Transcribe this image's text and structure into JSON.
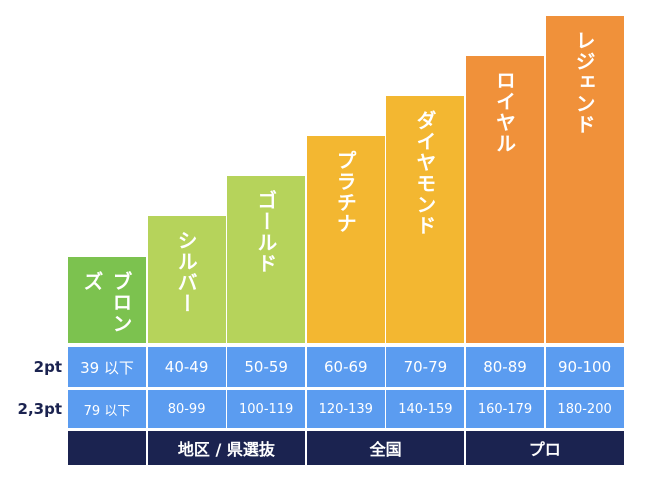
{
  "row_labels": [
    "2pt",
    "2,3pt"
  ],
  "tiers": [
    {
      "name": "ブロンズ",
      "pt2": "39 以下",
      "pt23": "79 以下"
    },
    {
      "name": "シルバー",
      "pt2": "40-49",
      "pt23": "80-99"
    },
    {
      "name": "ゴールド",
      "pt2": "50-59",
      "pt23": "100-119"
    },
    {
      "name": "プラチナ",
      "pt2": "60-69",
      "pt23": "120-139"
    },
    {
      "name": "ダイヤモンド",
      "pt2": "70-79",
      "pt23": "140-159"
    },
    {
      "name": "ロイヤル",
      "pt2": "80-89",
      "pt23": "160-179"
    },
    {
      "name": "レジェンド",
      "pt2": "90-100",
      "pt23": "180-200"
    }
  ],
  "groups": [
    "地区 / 県選抜",
    "全国",
    "プロ"
  ]
}
